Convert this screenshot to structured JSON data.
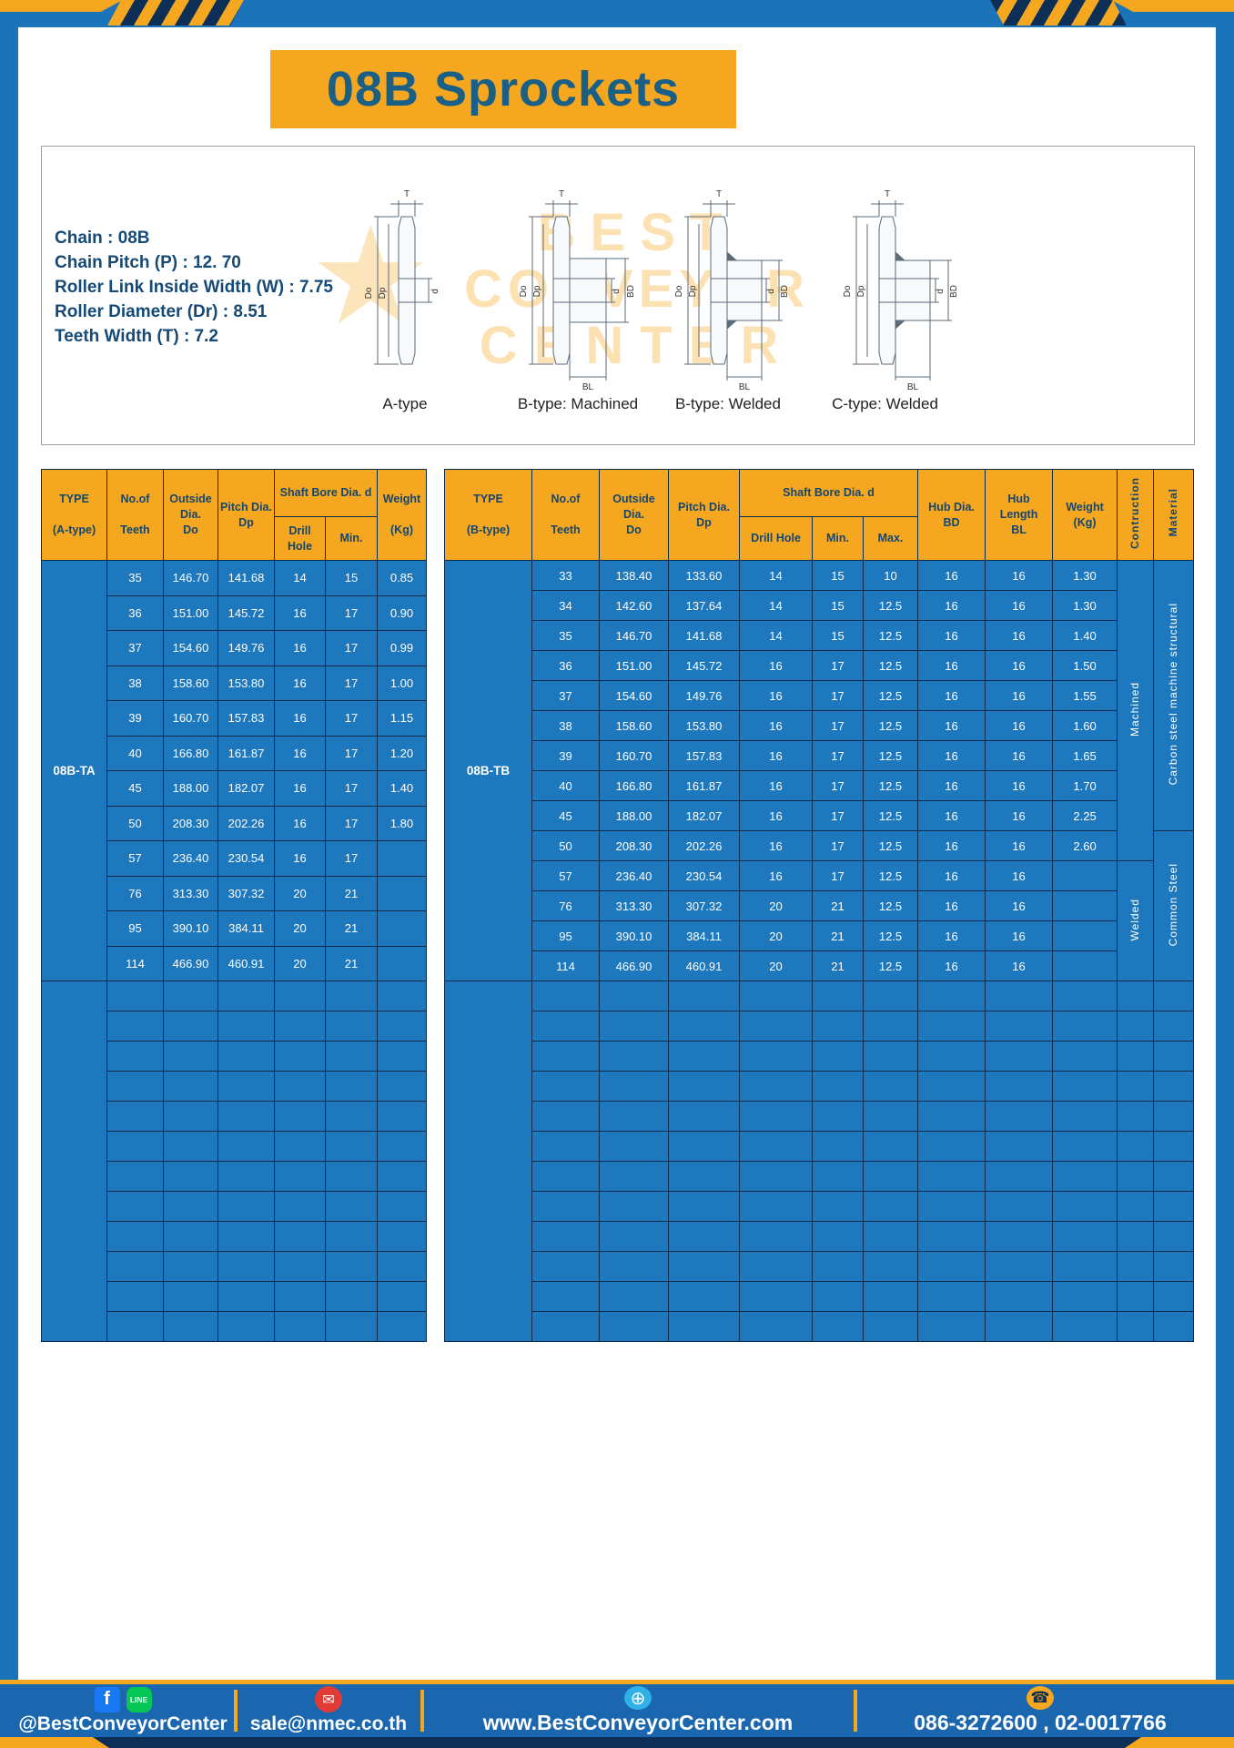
{
  "page": {
    "title": "08B Sprockets"
  },
  "specs": {
    "lines": [
      "Chain  : 08B",
      "Chain Pitch (P)  :  12. 70",
      "Roller Link Inside Width (W)  :  7.75",
      "Roller Diameter (Dr)  : 8.51",
      "Teeth Width (T)  :  7.2"
    ]
  },
  "drawings": {
    "captions": [
      "A-type",
      "B-type: Machined",
      "B-type: Welded",
      "C-type: Welded"
    ],
    "dims": {
      "t": "T",
      "outer": "Do",
      "pitch": "Dp",
      "bore": "d",
      "hub": "BD",
      "hublen": "BL"
    },
    "watermark": {
      "line1": "BEST",
      "line2": "CONVEYOR",
      "line3": "CENTER",
      "star": "★"
    }
  },
  "table_a": {
    "headers": {
      "type": "TYPE\n\n(A-type)",
      "teeth": "No.of\n\nTeeth",
      "outside": "Outside\nDia.\nDo",
      "pitch": "Pitch Dia.\nDp",
      "shaft": "Shaft Bore Dia. d",
      "drill": "Drill Hole",
      "min": "Min.",
      "weight": "Weight\n\n(Kg)"
    },
    "type_label": "08B-TA",
    "rows": [
      [
        "35",
        "146.70",
        "141.68",
        "14",
        "15",
        "0.85"
      ],
      [
        "36",
        "151.00",
        "145.72",
        "16",
        "17",
        "0.90"
      ],
      [
        "37",
        "154.60",
        "149.76",
        "16",
        "17",
        "0.99"
      ],
      [
        "38",
        "158.60",
        "153.80",
        "16",
        "17",
        "1.00"
      ],
      [
        "39",
        "160.70",
        "157.83",
        "16",
        "17",
        "1.15"
      ],
      [
        "40",
        "166.80",
        "161.87",
        "16",
        "17",
        "1.20"
      ],
      [
        "45",
        "188.00",
        "182.07",
        "16",
        "17",
        "1.40"
      ],
      [
        "50",
        "208.30",
        "202.26",
        "16",
        "17",
        "1.80"
      ],
      [
        "57",
        "236.40",
        "230.54",
        "16",
        "17",
        ""
      ],
      [
        "76",
        "313.30",
        "307.32",
        "20",
        "21",
        ""
      ],
      [
        "95",
        "390.10",
        "384.11",
        "20",
        "21",
        ""
      ],
      [
        "114",
        "466.90",
        "460.91",
        "20",
        "21",
        ""
      ]
    ],
    "empty_rows": 12
  },
  "table_b": {
    "headers": {
      "type": "TYPE\n\n(B-type)",
      "teeth": "No.of\n\nTeeth",
      "outside": "Outside\nDia.\nDo",
      "pitch": "Pitch Dia.\nDp",
      "shaft": "Shaft Bore Dia. d",
      "drill": "Drill Hole",
      "min": "Min.",
      "max": "Max.",
      "hub_dia": "Hub Dia.\nBD",
      "hub_len": "Hub\nLength\nBL",
      "weight": "Weight\n(Kg)",
      "construction": "Contruction",
      "material": "Material"
    },
    "type_label": "08B-TB",
    "rows": [
      [
        "33",
        "138.40",
        "133.60",
        "14",
        "15",
        "10",
        "16",
        "16",
        "1.30"
      ],
      [
        "34",
        "142.60",
        "137.64",
        "14",
        "15",
        "12.5",
        "16",
        "16",
        "1.30"
      ],
      [
        "35",
        "146.70",
        "141.68",
        "14",
        "15",
        "12.5",
        "16",
        "16",
        "1.40"
      ],
      [
        "36",
        "151.00",
        "145.72",
        "16",
        "17",
        "12.5",
        "16",
        "16",
        "1.50"
      ],
      [
        "37",
        "154.60",
        "149.76",
        "16",
        "17",
        "12.5",
        "16",
        "16",
        "1.55"
      ],
      [
        "38",
        "158.60",
        "153.80",
        "16",
        "17",
        "12.5",
        "16",
        "16",
        "1.60"
      ],
      [
        "39",
        "160.70",
        "157.83",
        "16",
        "17",
        "12.5",
        "16",
        "16",
        "1.65"
      ],
      [
        "40",
        "166.80",
        "161.87",
        "16",
        "17",
        "12.5",
        "16",
        "16",
        "1.70"
      ],
      [
        "45",
        "188.00",
        "182.07",
        "16",
        "17",
        "12.5",
        "16",
        "16",
        "2.25"
      ],
      [
        "50",
        "208.30",
        "202.26",
        "16",
        "17",
        "12.5",
        "16",
        "16",
        "2.60"
      ],
      [
        "57",
        "236.40",
        "230.54",
        "16",
        "17",
        "12.5",
        "16",
        "16",
        ""
      ],
      [
        "76",
        "313.30",
        "307.32",
        "20",
        "21",
        "12.5",
        "16",
        "16",
        ""
      ],
      [
        "95",
        "390.10",
        "384.11",
        "20",
        "21",
        "12.5",
        "16",
        "16",
        ""
      ],
      [
        "114",
        "466.90",
        "460.91",
        "20",
        "21",
        "12.5",
        "16",
        "16",
        ""
      ]
    ],
    "construction_groups": [
      {
        "label": "Machined",
        "rows": 10
      },
      {
        "label": "Welded",
        "rows": 4
      }
    ],
    "material_groups": [
      {
        "label": "Carbon steel  machine  structural",
        "rows": 9
      },
      {
        "label": "Common  Steel",
        "rows": 5
      }
    ],
    "empty_rows": 12
  },
  "footer": {
    "fb": "f",
    "line": "LINE",
    "handle": "@BestConveyorCenter",
    "mail_glyph": "✉",
    "email": "sale@nmec.co.th",
    "globe_glyph": "⊕",
    "website": "www.BestConveyorCenter.com",
    "phone_glyph": "☎",
    "phones": "086-3272600 , 02-0017766"
  },
  "colors": {
    "frame_blue": "#1B74B9",
    "cell_blue": "#1E78BE",
    "accent_yellow": "#F5A71F",
    "navy_text": "#14466F",
    "title_blue": "#1A5F85",
    "footer_blue": "#1A66AF"
  }
}
